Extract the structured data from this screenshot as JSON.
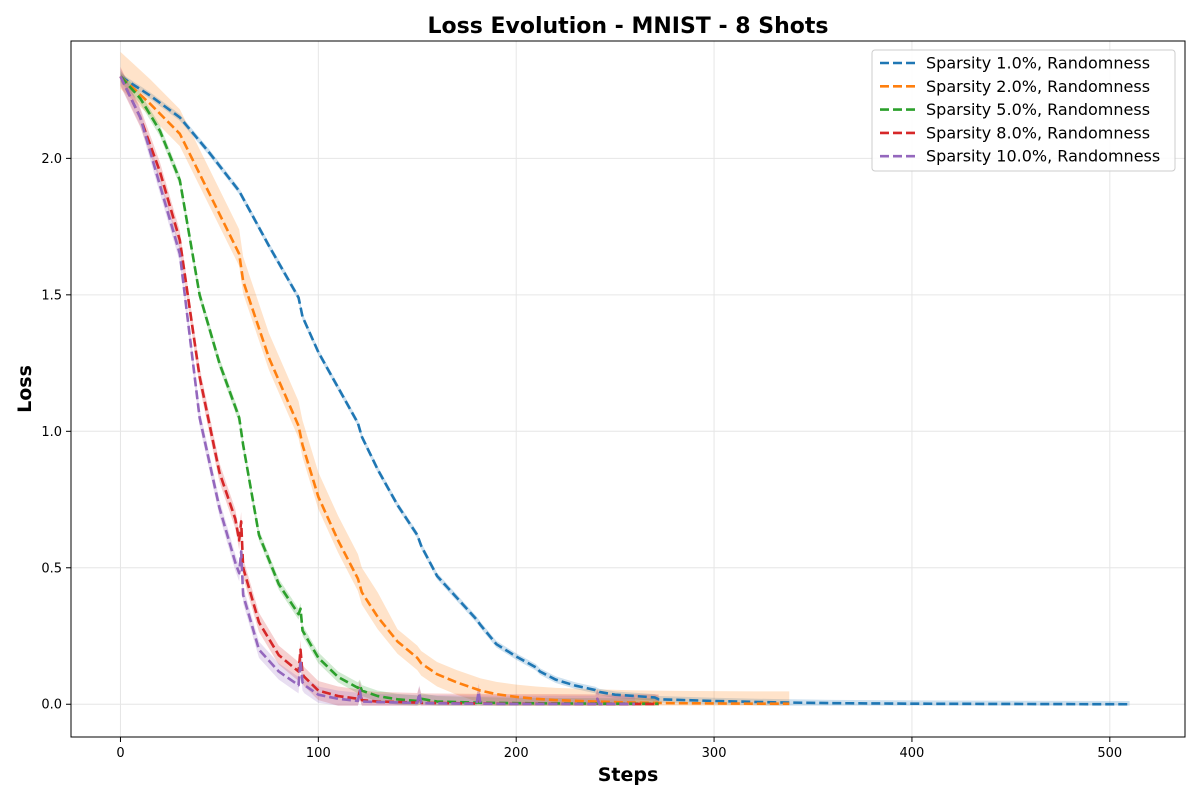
{
  "chart_data": {
    "type": "line",
    "title": "Loss Evolution - MNIST - 8 Shots",
    "xlabel": "Steps",
    "ylabel": "Loss",
    "xlim": [
      -25,
      538
    ],
    "ylim": [
      -0.12,
      2.43
    ],
    "xticks": [
      0,
      100,
      200,
      300,
      400,
      500
    ],
    "yticks": [
      0.0,
      0.5,
      1.0,
      1.5,
      2.0
    ],
    "ytick_labels": [
      "0.0",
      "0.5",
      "1.0",
      "1.5",
      "2.0"
    ],
    "grid": true,
    "legend_position": "top-right",
    "series": [
      {
        "name": "Sparsity 1.0%, Randomness",
        "color": "#1f77b4",
        "band": 0.012,
        "x": [
          0,
          15,
          30,
          45,
          60,
          75,
          90,
          92,
          100,
          110,
          120,
          122,
          130,
          140,
          150,
          152,
          160,
          170,
          180,
          182,
          190,
          200,
          210,
          212,
          220,
          230,
          240,
          242,
          250,
          270,
          272,
          300,
          330,
          360,
          400,
          450,
          510
        ],
        "y": [
          2.3,
          2.23,
          2.15,
          2.02,
          1.88,
          1.68,
          1.49,
          1.42,
          1.29,
          1.16,
          1.03,
          0.98,
          0.86,
          0.73,
          0.62,
          0.58,
          0.47,
          0.39,
          0.31,
          0.29,
          0.22,
          0.175,
          0.135,
          0.12,
          0.09,
          0.068,
          0.052,
          0.045,
          0.035,
          0.025,
          0.018,
          0.012,
          0.007,
          0.004,
          0.002,
          0.001,
          0.0
        ]
      },
      {
        "name": "Sparsity 2.0%, Randomness",
        "color": "#ff7f0e",
        "band": 0.045,
        "x": [
          0,
          15,
          30,
          45,
          60,
          62,
          75,
          90,
          92,
          100,
          110,
          120,
          122,
          130,
          140,
          150,
          152,
          160,
          170,
          180,
          182,
          190,
          200,
          210,
          220,
          240,
          260,
          280,
          300,
          320,
          338
        ],
        "y": [
          2.3,
          2.2,
          2.09,
          1.87,
          1.65,
          1.55,
          1.27,
          1.02,
          0.95,
          0.76,
          0.6,
          0.46,
          0.41,
          0.32,
          0.23,
          0.17,
          0.15,
          0.11,
          0.08,
          0.055,
          0.05,
          0.037,
          0.027,
          0.02,
          0.015,
          0.01,
          0.006,
          0.004,
          0.003,
          0.002,
          0.002
        ]
      },
      {
        "name": "Sparsity 5.0%, Randomness",
        "color": "#2ca02c",
        "band": 0.02,
        "x": [
          0,
          10,
          20,
          30,
          40,
          50,
          60,
          62,
          70,
          80,
          90,
          91,
          92,
          100,
          110,
          120,
          121,
          122,
          130,
          140,
          150,
          152,
          160,
          180,
          200,
          220,
          250,
          272
        ],
        "y": [
          2.3,
          2.22,
          2.1,
          1.92,
          1.5,
          1.25,
          1.05,
          0.95,
          0.62,
          0.44,
          0.33,
          0.35,
          0.27,
          0.17,
          0.1,
          0.06,
          0.07,
          0.05,
          0.03,
          0.018,
          0.012,
          0.02,
          0.01,
          0.006,
          0.004,
          0.003,
          0.002,
          0.002
        ]
      },
      {
        "name": "Sparsity 8.0%, Randomness",
        "color": "#d62728",
        "band": 0.035,
        "x": [
          0,
          10,
          20,
          30,
          40,
          50,
          58,
          60,
          61,
          62,
          70,
          80,
          90,
          91,
          92,
          93,
          100,
          110,
          120,
          121,
          122,
          130,
          150,
          151,
          152,
          180,
          181,
          182,
          200,
          220,
          240,
          241,
          242,
          260,
          272
        ],
        "y": [
          2.3,
          2.15,
          1.95,
          1.7,
          1.2,
          0.85,
          0.68,
          0.6,
          0.67,
          0.5,
          0.3,
          0.18,
          0.12,
          0.2,
          0.11,
          0.1,
          0.05,
          0.03,
          0.02,
          0.05,
          0.015,
          0.01,
          0.006,
          0.03,
          0.005,
          0.003,
          0.025,
          0.003,
          0.002,
          0.002,
          0.001,
          0.02,
          0.001,
          0.001,
          0.001
        ]
      },
      {
        "name": "Sparsity 10.0%, Randomness",
        "color": "#9467bd",
        "band": 0.03,
        "x": [
          0,
          10,
          20,
          30,
          40,
          50,
          58,
          60,
          61,
          62,
          70,
          80,
          90,
          91,
          92,
          93,
          100,
          110,
          120,
          121,
          122,
          130,
          150,
          151,
          152,
          180,
          181,
          182,
          200,
          220,
          240,
          241,
          242,
          260
        ],
        "y": [
          2.3,
          2.15,
          1.9,
          1.65,
          1.05,
          0.72,
          0.52,
          0.48,
          0.56,
          0.4,
          0.2,
          0.12,
          0.07,
          0.16,
          0.08,
          0.07,
          0.035,
          0.02,
          0.012,
          0.05,
          0.01,
          0.008,
          0.005,
          0.04,
          0.004,
          0.002,
          0.045,
          0.002,
          0.001,
          0.001,
          0.001,
          0.02,
          0.001,
          0.001
        ]
      }
    ]
  }
}
